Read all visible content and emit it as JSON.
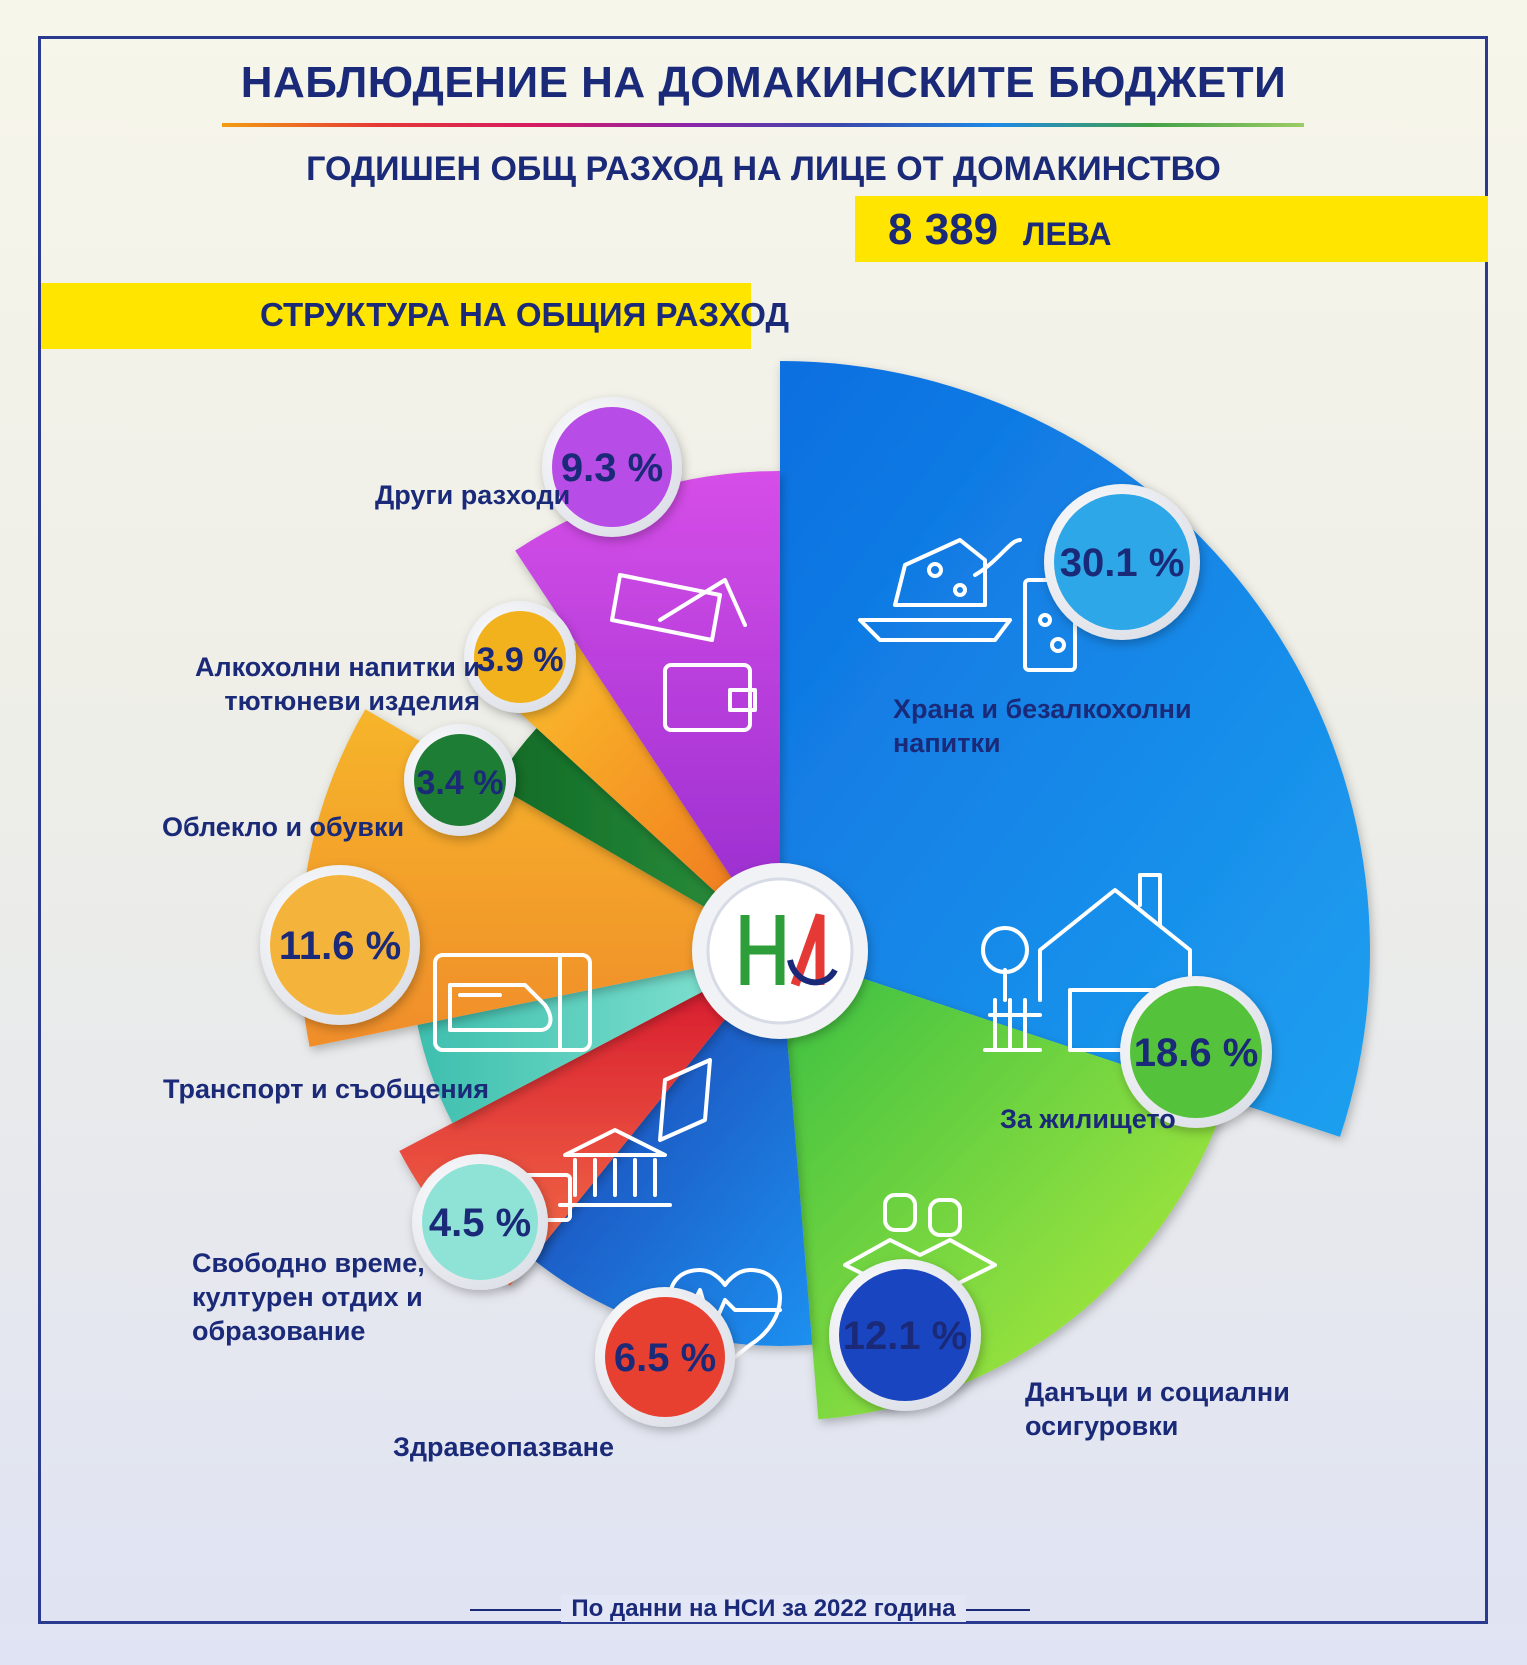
{
  "header": {
    "title": "НАБЛЮДЕНИЕ НА ДОМАКИНСКИТЕ БЮДЖЕТИ",
    "subtitle": "ГОДИШЕН ОБЩ РАЗХОД НА ЛИЦЕ ОТ ДОМАКИНСТВО",
    "total_value": "8 389",
    "total_unit": "ЛЕВА",
    "structure_label": "СТРУКТУРА НА ОБЩИЯ РАЗХОД"
  },
  "logo_text": "НСИ",
  "footer": "По данни на НСИ за 2022 година",
  "chart_data": {
    "type": "pie",
    "title": "СТРУКТУРА НА ОБЩИЯ РАЗХОД",
    "categories": [
      "Храна и безалкохолни напитки",
      "За жилището",
      "Данъци и социални осигуровки",
      "Здравеопазване",
      "Свободно време, културен отдих и образование",
      "Транспорт и съобщения",
      "Облекло и обувки",
      "Алкохолни напитки и тютюневи изделия",
      "Други разходи"
    ],
    "values": [
      30.1,
      18.6,
      12.1,
      6.5,
      4.5,
      11.6,
      3.4,
      3.9,
      9.3
    ],
    "value_labels": [
      "30.1 %",
      "18.6 %",
      "12.1 %",
      "6.5 %",
      "4.5 %",
      "11.6 %",
      "3.4 %",
      "3.9 %",
      "9.3 %"
    ],
    "colors": [
      "#1e7fe8",
      "#7ad23a",
      "#1566d6",
      "#e53935",
      "#4fc9b8",
      "#f5a623",
      "#1c7a2c",
      "#f39a1e",
      "#c44de0"
    ],
    "icons": [
      "food-icon",
      "house-icon",
      "coins-book-icon",
      "heart-pulse-icon",
      "leisure-icon",
      "train-ticket-icon",
      "",
      "",
      "wallet-icon"
    ],
    "unit": "%"
  }
}
